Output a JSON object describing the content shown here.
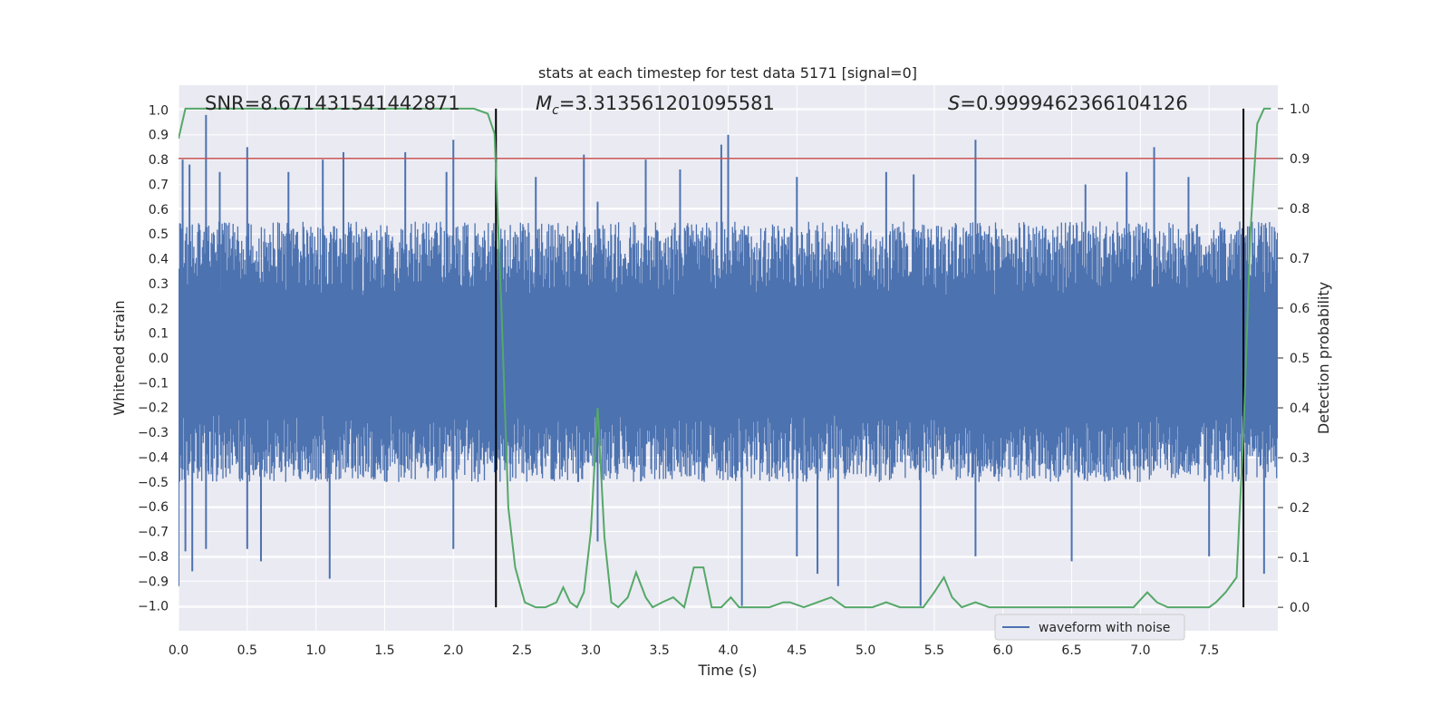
{
  "chart_data": {
    "type": "line",
    "title": "stats at each timestep for test data 5171 [signal=0]",
    "xlabel": "Time (s)",
    "ylabel": "Whitened strain",
    "y2label": "Detection probability",
    "xlim": [
      0.0,
      8.0
    ],
    "ylim": [
      -1.1,
      1.1
    ],
    "y2lim": [
      -0.047,
      1.047
    ],
    "x_ticks": [
      "0.0",
      "0.5",
      "1.0",
      "1.5",
      "2.0",
      "2.5",
      "3.0",
      "3.5",
      "4.0",
      "4.5",
      "5.0",
      "5.5",
      "6.0",
      "6.5",
      "7.0",
      "7.5"
    ],
    "y_ticks": [
      "1.0",
      "0.9",
      "0.8",
      "0.7",
      "0.6",
      "0.5",
      "0.4",
      "0.3",
      "0.2",
      "0.1",
      "0.0",
      "-0.1",
      "-0.2",
      "-0.3",
      "-0.4",
      "-0.5",
      "-0.6",
      "-0.7",
      "-0.8",
      "-0.9",
      "-1.0"
    ],
    "y2_ticks": [
      "1.0",
      "0.9",
      "0.8",
      "0.7",
      "0.6",
      "0.5",
      "0.4",
      "0.3",
      "0.2",
      "0.1",
      "0.0"
    ],
    "grid": true,
    "legend_placement": "lower-right",
    "annotations": {
      "snr": "SNR=8.671431541442871",
      "mc_symbol": "M",
      "mc_sub": "c",
      "mc_value": "=3.313561201095581",
      "s_symbol": "S",
      "s_value": "=0.9999462366104126"
    },
    "threshold_y": 0.9,
    "vlines_x": [
      2.31,
      7.75
    ],
    "series": [
      {
        "name": "waveform with noise",
        "axis": "left",
        "color": "#4c72b0",
        "style": "noise",
        "typical_max": 0.55,
        "typical_min": -0.5,
        "peak_up": [
          [
            0.03,
            0.8
          ],
          [
            0.08,
            0.78
          ],
          [
            0.2,
            0.98
          ],
          [
            0.3,
            0.75
          ],
          [
            0.5,
            0.85
          ],
          [
            0.8,
            0.75
          ],
          [
            1.05,
            0.8
          ],
          [
            1.2,
            0.83
          ],
          [
            1.65,
            0.83
          ],
          [
            1.95,
            0.75
          ],
          [
            2.0,
            0.88
          ],
          [
            2.6,
            0.73
          ],
          [
            2.95,
            0.82
          ],
          [
            3.05,
            0.63
          ],
          [
            3.4,
            0.8
          ],
          [
            3.65,
            0.76
          ],
          [
            3.95,
            0.86
          ],
          [
            4.0,
            0.9
          ],
          [
            4.5,
            0.73
          ],
          [
            5.15,
            0.75
          ],
          [
            5.35,
            0.74
          ],
          [
            5.8,
            0.88
          ],
          [
            6.6,
            0.7
          ],
          [
            6.9,
            0.75
          ],
          [
            7.1,
            0.85
          ],
          [
            7.35,
            0.73
          ]
        ],
        "peak_down": [
          [
            0.0,
            -0.92
          ],
          [
            0.05,
            -0.78
          ],
          [
            0.1,
            -0.86
          ],
          [
            0.2,
            -0.77
          ],
          [
            0.5,
            -0.77
          ],
          [
            0.6,
            -0.82
          ],
          [
            1.1,
            -0.89
          ],
          [
            2.0,
            -0.77
          ],
          [
            3.05,
            -0.74
          ],
          [
            4.1,
            -1.0
          ],
          [
            4.5,
            -0.8
          ],
          [
            4.65,
            -0.87
          ],
          [
            4.8,
            -0.92
          ],
          [
            5.4,
            -1.0
          ],
          [
            5.8,
            -0.8
          ],
          [
            6.5,
            -0.82
          ],
          [
            7.5,
            -0.8
          ],
          [
            7.9,
            -0.87
          ]
        ]
      },
      {
        "name": "",
        "axis": "right",
        "color": "#55a868",
        "x": [
          0.0,
          0.05,
          0.1,
          0.5,
          1.0,
          1.5,
          2.0,
          2.15,
          2.25,
          2.3,
          2.35,
          2.4,
          2.45,
          2.52,
          2.6,
          2.67,
          2.75,
          2.8,
          2.85,
          2.9,
          2.95,
          3.0,
          3.05,
          3.1,
          3.15,
          3.2,
          3.27,
          3.33,
          3.4,
          3.45,
          3.52,
          3.6,
          3.68,
          3.75,
          3.82,
          3.88,
          3.95,
          4.02,
          4.08,
          4.15,
          4.22,
          4.3,
          4.4,
          4.45,
          4.55,
          4.65,
          4.75,
          4.85,
          4.95,
          5.05,
          5.15,
          5.25,
          5.32,
          5.42,
          5.5,
          5.57,
          5.63,
          5.7,
          5.8,
          5.9,
          6.0,
          6.2,
          6.5,
          6.8,
          6.95,
          7.05,
          7.12,
          7.2,
          7.3,
          7.4,
          7.5,
          7.55,
          7.62,
          7.7,
          7.75,
          7.8,
          7.85,
          7.9,
          7.95
        ],
        "y": [
          0.94,
          1.0,
          1.0,
          1.0,
          1.0,
          1.0,
          1.0,
          1.0,
          0.99,
          0.95,
          0.6,
          0.2,
          0.08,
          0.01,
          0.0,
          0.0,
          0.01,
          0.04,
          0.01,
          0.0,
          0.03,
          0.15,
          0.4,
          0.14,
          0.01,
          0.0,
          0.02,
          0.07,
          0.02,
          0.0,
          0.01,
          0.02,
          0.0,
          0.08,
          0.08,
          0.0,
          0.0,
          0.02,
          0.0,
          0.0,
          0.0,
          0.0,
          0.01,
          0.01,
          0.0,
          0.01,
          0.02,
          0.0,
          0.0,
          0.0,
          0.01,
          0.0,
          0.0,
          0.0,
          0.03,
          0.06,
          0.02,
          0.0,
          0.01,
          0.0,
          0.0,
          0.0,
          0.0,
          0.0,
          0.0,
          0.03,
          0.01,
          0.0,
          0.0,
          0.0,
          0.0,
          0.01,
          0.03,
          0.06,
          0.35,
          0.75,
          0.97,
          1.0,
          1.0
        ]
      }
    ],
    "colors": {
      "background": "#eaeaf2",
      "grid": "#ffffff",
      "threshold": "#c44e52",
      "vline": "#000000"
    }
  }
}
